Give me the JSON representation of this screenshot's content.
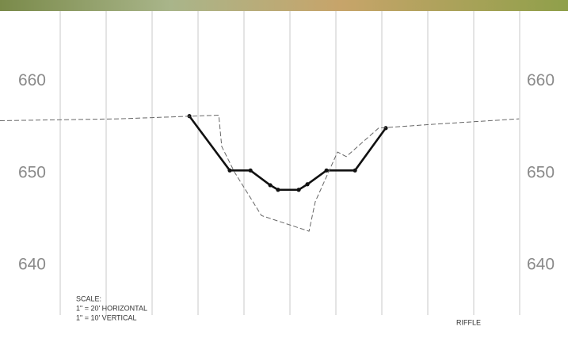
{
  "chart_data": {
    "type": "line",
    "yticks": [
      640,
      650,
      660
    ],
    "ylim": [
      634.6,
      667.6
    ],
    "xlim": [
      -26.2,
      221
    ],
    "grid": false,
    "annotations": [
      "SCALE:",
      "1\" = 20' HORIZONTAL",
      "1\" = 10' VERTICAL",
      "RIFFLE"
    ],
    "series": [
      {
        "color": "#111111",
        "dashed": false,
        "marker": true,
        "x": [
          56.2,
          73.8,
          82.8,
          91.4,
          94.8,
          103.8,
          107.6,
          115.9,
          128.3,
          141.7
        ],
        "values": [
          656.2,
          650.3,
          650.3,
          648.7,
          648.2,
          648.2,
          648.8,
          650.3,
          650.3,
          654.9
        ]
      },
      {
        "color": "#666666",
        "dashed": true,
        "marker": false,
        "x": [
          -26.2,
          25.5,
          69.0,
          70.3,
          75.9,
          87.6,
          108.3,
          111.0,
          120.7,
          124.5,
          138.6,
          161.7,
          199.7
        ],
        "values": [
          655.7,
          655.9,
          656.3,
          652.9,
          650.1,
          645.4,
          643.7,
          646.9,
          652.3,
          651.8,
          654.9,
          655.3,
          655.9
        ]
      }
    ]
  }
}
